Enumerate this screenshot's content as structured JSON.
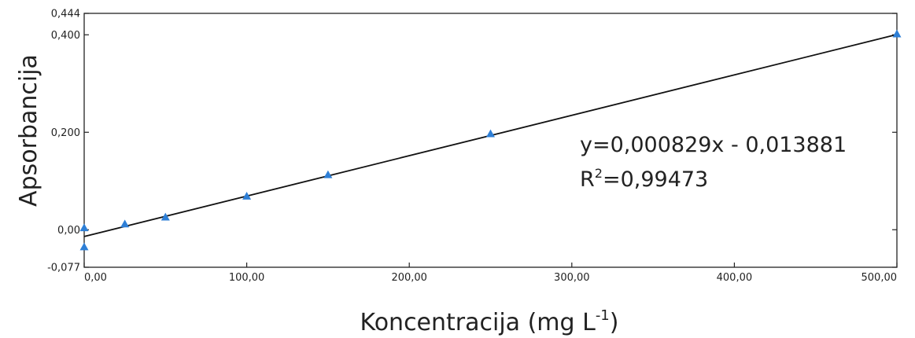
{
  "chart_data": {
    "type": "scatter",
    "title": "",
    "xlabel": "Koncentracija (mg L",
    "xlabel_superscript": "-1",
    "xlabel_suffix": ")",
    "ylabel": "Apsorbancija",
    "xlim": [
      0,
      500
    ],
    "ylim": [
      -0.077,
      0.444
    ],
    "x_ticks": [
      {
        "value": 0,
        "label": "0,00"
      },
      {
        "value": 100,
        "label": "100,00"
      },
      {
        "value": 200,
        "label": "200,00"
      },
      {
        "value": 300,
        "label": "300,00"
      },
      {
        "value": 400,
        "label": "400,00"
      },
      {
        "value": 500,
        "label": "500,00"
      }
    ],
    "y_ticks": [
      {
        "value": 0.444,
        "label": "0,444"
      },
      {
        "value": 0.4,
        "label": "0,400"
      },
      {
        "value": 0.2,
        "label": "0,200"
      },
      {
        "value": 0.0,
        "label": "0,00"
      },
      {
        "value": -0.077,
        "label": "-0,077"
      }
    ],
    "grid": false,
    "marker": "triangle",
    "marker_color": "#2e7fd6",
    "line_color": "#111111",
    "series": [
      {
        "x": [
          0,
          0,
          25,
          50,
          100,
          150,
          250,
          500
        ],
        "y": [
          0.004,
          -0.035,
          0.012,
          0.026,
          0.069,
          0.113,
          0.197,
          0.402
        ]
      }
    ],
    "trendline": {
      "slope": 0.000829,
      "intercept": -0.013881,
      "equation": "y=0,000829x - 0,013881",
      "r2_label": "R",
      "r2_superscript": "2",
      "r2_value": "=0,99473"
    }
  }
}
